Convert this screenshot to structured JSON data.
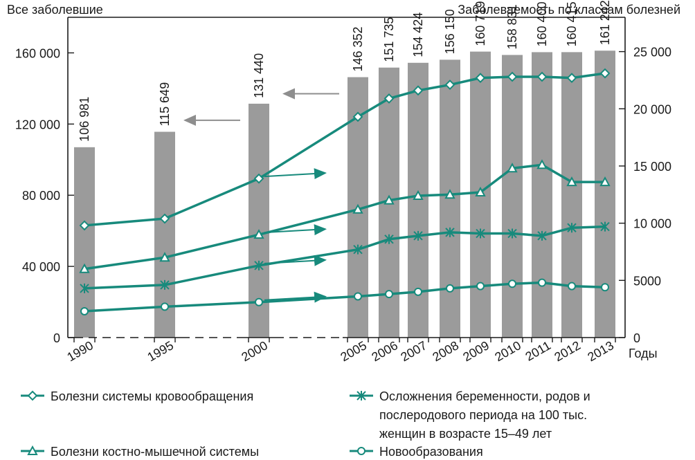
{
  "chart_data": {
    "type": "bar",
    "title_left": "Все заболевшие",
    "title_right": "Заболеваемость по классам болезней",
    "xlabel": "Годы",
    "categories": [
      "1990",
      "1995",
      "2000",
      "2005",
      "2006",
      "2007",
      "2008",
      "2009",
      "2010",
      "2011",
      "2012",
      "2013"
    ],
    "bar_series": {
      "values": [
        106981,
        115649,
        131440,
        146352,
        151735,
        154424,
        156150,
        160719,
        158831,
        160400,
        160415,
        161242
      ],
      "labels": [
        "106 981",
        "115 649",
        "131 440",
        "146 352",
        "151 735",
        "154 424",
        "156 150",
        "160 719",
        "158 831",
        "160 400",
        "160 415",
        "161 242"
      ],
      "color": "#9b9b9b"
    },
    "left_axis": {
      "ylim": [
        0,
        180000
      ],
      "ticks": [
        0,
        40000,
        80000,
        120000,
        160000
      ],
      "tick_labels": [
        "0",
        "40 000",
        "80 000",
        "120 000",
        "160 000"
      ]
    },
    "right_axis": {
      "ylim": [
        0,
        28000
      ],
      "ticks": [
        0,
        5000,
        10000,
        15000,
        20000,
        25000
      ],
      "tick_labels": [
        "0",
        "5000",
        "10 000",
        "15 000",
        "20 000",
        "25 000"
      ]
    },
    "line_color": "#178a7c",
    "series": [
      {
        "name": "Болезни системы кровообращения",
        "marker": "diamond",
        "axis": "right",
        "values": [
          9800,
          10400,
          13900,
          19300,
          20900,
          21600,
          22100,
          22700,
          22800,
          22800,
          22700,
          23100
        ]
      },
      {
        "name": "Болезни костно-мышечной системы",
        "marker": "triangle",
        "axis": "right",
        "values": [
          6000,
          7000,
          9000,
          11200,
          12000,
          12400,
          12500,
          12700,
          14800,
          15100,
          13600,
          13600
        ]
      },
      {
        "name": "Осложнения беременности, родов и послеродового периода на 100 тыс. женщин в возрасте 15–49 лет",
        "marker": "x",
        "axis": "right",
        "legend_lines": [
          "Осложнения беременности, родов и",
          "послеродового периода на 100 тыс.",
          "женщин в возрасте 15–49 лет"
        ],
        "values": [
          4300,
          4600,
          6300,
          7700,
          8600,
          8900,
          9200,
          9100,
          9100,
          8900,
          9600,
          9700
        ]
      },
      {
        "name": "Новообразования",
        "marker": "circle",
        "axis": "right",
        "values": [
          2300,
          2700,
          3100,
          3600,
          3800,
          4000,
          4300,
          4500,
          4700,
          4800,
          4500,
          4400
        ]
      }
    ],
    "axis_arrows": [
      {
        "category": "2000",
        "direction": "left",
        "series": "bars"
      },
      {
        "category": "2005",
        "direction": "left",
        "series": "bars"
      },
      {
        "category": "2000",
        "direction": "right",
        "series": "Болезни системы кровообращения"
      },
      {
        "category": "2000",
        "direction": "right",
        "series": "Болезни костно-мышечной системы"
      },
      {
        "category": "2000",
        "direction": "right",
        "series": "Осложнения беременности, родов и послеродового периода на 100 тыс. женщин в возрасте 15–49 лет"
      },
      {
        "category": "2000",
        "direction": "right",
        "series": "Новообразования"
      }
    ],
    "axis_break": "between 1990 and 2005 along x-axis (dashed)",
    "grid": false,
    "legend_placement": "bottom"
  }
}
